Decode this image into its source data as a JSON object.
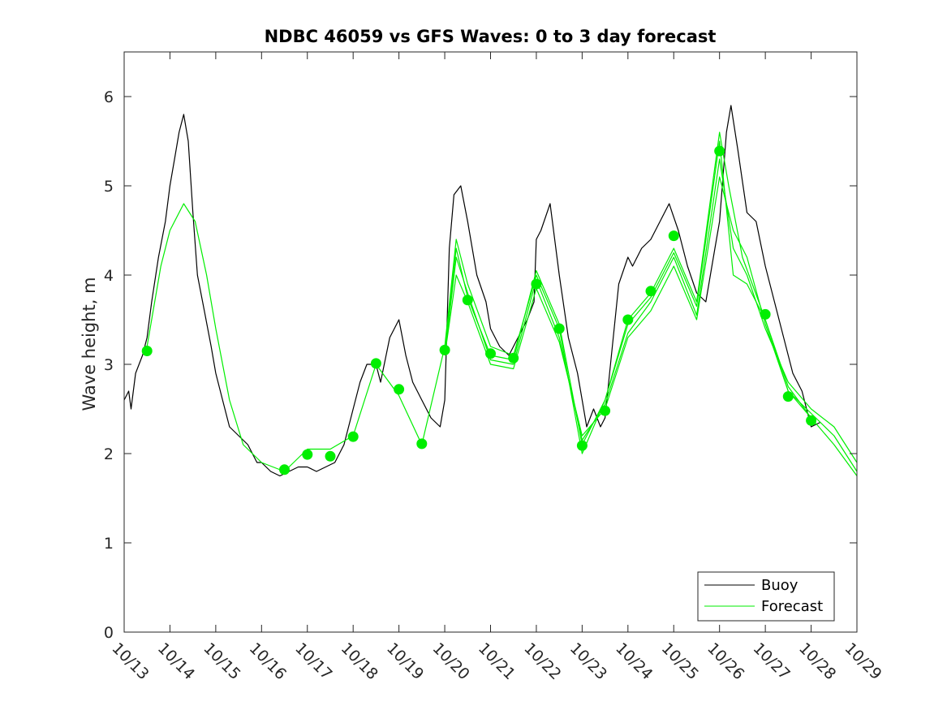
{
  "chart_data": {
    "type": "line",
    "title": "NDBC 46059 vs GFS Waves: 0 to 3 day forecast",
    "xlabel": "",
    "ylabel": "Wave height, m",
    "xlim": [
      0,
      16
    ],
    "ylim": [
      0,
      6.5
    ],
    "x_ticks": [
      0,
      1,
      2,
      3,
      4,
      5,
      6,
      7,
      8,
      9,
      10,
      11,
      12,
      13,
      14,
      15,
      16
    ],
    "x_tick_labels": [
      "10/13",
      "10/14",
      "10/15",
      "10/16",
      "10/17",
      "10/18",
      "10/19",
      "10/20",
      "10/21",
      "10/22",
      "10/23",
      "10/24",
      "10/25",
      "10/26",
      "10/27",
      "10/28",
      "10/29"
    ],
    "y_ticks": [
      0,
      1,
      2,
      3,
      4,
      5,
      6
    ],
    "y_tick_labels": [
      "0",
      "1",
      "2",
      "3",
      "4",
      "5",
      "6"
    ],
    "grid": false,
    "legend": {
      "position": "bottom-right",
      "entries": [
        "Buoy",
        "Forecast"
      ]
    },
    "colors": {
      "buoy": "#000000",
      "forecast": "#00ee00",
      "axis": "#262626"
    },
    "series": [
      {
        "name": "Buoy",
        "x": [
          0,
          0.1,
          0.15,
          0.25,
          0.4,
          0.5,
          0.6,
          0.75,
          0.9,
          1.0,
          1.1,
          1.2,
          1.3,
          1.4,
          1.5,
          1.6,
          1.75,
          1.9,
          2.0,
          2.15,
          2.3,
          2.5,
          2.7,
          2.9,
          3.0,
          3.2,
          3.4,
          3.6,
          3.8,
          4.0,
          4.2,
          4.4,
          4.6,
          4.8,
          5.0,
          5.15,
          5.3,
          5.5,
          5.6,
          5.8,
          6.0,
          6.15,
          6.3,
          6.5,
          6.7,
          6.9,
          7.0,
          7.1,
          7.2,
          7.35,
          7.5,
          7.7,
          7.9,
          8.0,
          8.2,
          8.4,
          8.6,
          8.8,
          8.95,
          9.0,
          9.1,
          9.3,
          9.5,
          9.7,
          9.9,
          10.0,
          10.1,
          10.25,
          10.4,
          10.5,
          10.6,
          10.8,
          11.0,
          11.1,
          11.3,
          11.5,
          11.7,
          11.9,
          12.1,
          12.3,
          12.5,
          12.7,
          12.9,
          13.0,
          13.15,
          13.25,
          13.4,
          13.6,
          13.8,
          14.0,
          14.2,
          14.4,
          14.6,
          14.8,
          15.0,
          15.2
        ],
        "values": [
          2.6,
          2.7,
          2.5,
          2.9,
          3.1,
          3.3,
          3.7,
          4.2,
          4.6,
          5.0,
          5.3,
          5.6,
          5.8,
          5.5,
          4.7,
          4.0,
          3.6,
          3.2,
          2.9,
          2.6,
          2.3,
          2.2,
          2.1,
          1.9,
          1.9,
          1.8,
          1.75,
          1.8,
          1.85,
          1.85,
          1.8,
          1.85,
          1.9,
          2.1,
          2.5,
          2.8,
          3.0,
          3.0,
          2.8,
          3.3,
          3.5,
          3.1,
          2.8,
          2.6,
          2.4,
          2.3,
          2.6,
          4.3,
          4.9,
          5.0,
          4.6,
          4.0,
          3.7,
          3.4,
          3.2,
          3.1,
          3.3,
          3.5,
          3.7,
          4.4,
          4.5,
          4.8,
          4.0,
          3.3,
          2.9,
          2.6,
          2.3,
          2.5,
          2.3,
          2.4,
          2.9,
          3.9,
          4.2,
          4.1,
          4.3,
          4.4,
          4.6,
          4.8,
          4.5,
          4.1,
          3.8,
          3.7,
          4.3,
          4.6,
          5.6,
          5.9,
          5.4,
          4.7,
          4.6,
          4.1,
          3.7,
          3.3,
          2.9,
          2.7,
          2.3,
          2.35
        ]
      },
      {
        "name": "Forecast",
        "x": [
          0.5,
          0.8,
          1.0,
          1.3,
          1.55,
          1.8,
          2.0,
          2.3,
          2.6,
          3.0,
          3.5,
          4.0,
          4.5,
          5.0,
          5.5,
          6.0,
          6.5,
          7.0,
          7.25,
          7.5,
          8.0,
          8.5,
          9.0,
          9.5,
          10.0,
          10.5,
          11.0,
          11.5,
          12.0,
          12.5,
          13.0,
          13.2,
          13.5,
          14.0,
          14.5,
          15.0,
          15.5,
          16.0
        ],
        "values": [
          3.2,
          4.1,
          4.5,
          4.8,
          4.6,
          4.0,
          3.4,
          2.6,
          2.1,
          1.9,
          1.8,
          2.05,
          2.05,
          2.2,
          3.0,
          2.65,
          2.1,
          3.2,
          4.4,
          3.9,
          3.2,
          3.1,
          4.0,
          3.4,
          2.0,
          2.6,
          3.5,
          3.8,
          4.3,
          3.7,
          5.6,
          5.0,
          4.2,
          3.5,
          2.7,
          2.4,
          2.1,
          1.75
        ]
      },
      {
        "name": "Forecast",
        "x": [
          7.0,
          7.25,
          7.5,
          8.0,
          8.5,
          9.0,
          9.5,
          10.0,
          10.5,
          11.0,
          11.5,
          12.0,
          12.5,
          13.0,
          13.3,
          13.6,
          14.0,
          14.5,
          15.0,
          15.5,
          16.0
        ],
        "values": [
          3.1,
          4.2,
          3.8,
          3.05,
          3.0,
          3.95,
          3.3,
          2.15,
          2.55,
          3.35,
          3.7,
          4.2,
          3.55,
          5.3,
          4.3,
          4.0,
          3.4,
          2.8,
          2.5,
          2.3,
          1.9
        ]
      },
      {
        "name": "Forecast",
        "x": [
          7.0,
          7.25,
          7.5,
          8.0,
          8.5,
          9.0,
          9.5,
          10.0,
          10.5,
          11.0,
          11.5,
          12.0,
          12.5,
          13.0,
          13.3,
          13.6,
          14.0,
          14.5,
          15.0,
          15.5,
          16.0
        ],
        "values": [
          3.1,
          4.0,
          3.7,
          3.0,
          2.95,
          3.85,
          3.25,
          2.2,
          2.5,
          3.3,
          3.6,
          4.1,
          3.5,
          5.1,
          4.5,
          4.2,
          3.45,
          2.7,
          2.45,
          2.2,
          1.8
        ]
      },
      {
        "name": "Forecast",
        "x": [
          7.0,
          7.25,
          7.5,
          8.0,
          8.5,
          9.0,
          9.5,
          10.0,
          10.5,
          11.0,
          11.5,
          12.0,
          12.5,
          13.0,
          13.3,
          13.6,
          14.0,
          14.5,
          15.0
        ],
        "values": [
          3.15,
          4.3,
          3.75,
          3.1,
          3.05,
          4.05,
          3.45,
          2.1,
          2.6,
          3.45,
          3.75,
          4.25,
          3.65,
          5.5,
          4.0,
          3.9,
          3.5,
          2.75,
          2.4
        ]
      }
    ],
    "markers": {
      "name": "Forecast",
      "x": [
        0.5,
        3.5,
        4.0,
        4.5,
        5.0,
        5.5,
        6.0,
        6.5,
        7.0,
        7.5,
        8.0,
        8.5,
        9.0,
        9.5,
        10.0,
        10.5,
        11.0,
        11.5,
        12.0,
        13.0,
        14.0,
        14.5,
        15.0
      ],
      "values": [
        3.15,
        1.82,
        1.99,
        1.97,
        2.19,
        3.01,
        2.72,
        2.11,
        3.16,
        3.72,
        3.12,
        3.07,
        3.9,
        3.4,
        2.09,
        2.48,
        3.5,
        3.82,
        4.44,
        5.39,
        3.56,
        2.64,
        2.37
      ]
    }
  }
}
